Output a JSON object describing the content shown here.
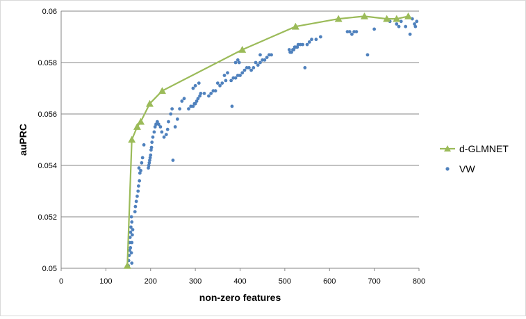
{
  "chart_data": {
    "type": "scatter",
    "title": "",
    "xlabel": "non-zero features",
    "ylabel": "auPRC",
    "xlim": [
      0,
      800
    ],
    "ylim": [
      0.05,
      0.06
    ],
    "x_ticks": [
      "0",
      "100",
      "200",
      "300",
      "400",
      "500",
      "600",
      "700",
      "800"
    ],
    "y_ticks": [
      "0.05",
      "0.052",
      "0.054",
      "0.056",
      "0.058",
      "0.06"
    ],
    "grid": "horizontal",
    "legend_position": "right",
    "series": [
      {
        "name": "d-GLMNET",
        "kind": "line-with-markers",
        "marker": "triangle",
        "color": "#9bbb59",
        "points": [
          [
            148,
            0.0501
          ],
          [
            158,
            0.055
          ],
          [
            170,
            0.0555
          ],
          [
            178,
            0.0557
          ],
          [
            198,
            0.0564
          ],
          [
            226,
            0.0569
          ],
          [
            405,
            0.0585
          ],
          [
            524,
            0.0594
          ],
          [
            620,
            0.0597
          ],
          [
            678,
            0.0598
          ],
          [
            728,
            0.0597
          ],
          [
            750,
            0.0597
          ],
          [
            776,
            0.0598
          ]
        ]
      },
      {
        "name": "VW",
        "kind": "markers",
        "marker": "circle",
        "color": "#4f81bd",
        "points": [
          [
            150,
            0.0501
          ],
          [
            151,
            0.0503
          ],
          [
            152,
            0.0505
          ],
          [
            153,
            0.0507
          ],
          [
            153,
            0.051
          ],
          [
            154,
            0.0512
          ],
          [
            155,
            0.0514
          ],
          [
            155,
            0.0508
          ],
          [
            156,
            0.0516
          ],
          [
            157,
            0.052
          ],
          [
            158,
            0.0518
          ],
          [
            157,
            0.0506
          ],
          [
            158,
            0.051
          ],
          [
            159,
            0.0513
          ],
          [
            160,
            0.0515
          ],
          [
            158,
            0.0502
          ],
          [
            165,
            0.0522
          ],
          [
            166,
            0.0524
          ],
          [
            168,
            0.0526
          ],
          [
            170,
            0.0528
          ],
          [
            172,
            0.053
          ],
          [
            173,
            0.0532
          ],
          [
            175,
            0.0534
          ],
          [
            176,
            0.0537
          ],
          [
            174,
            0.0539
          ],
          [
            178,
            0.0538
          ],
          [
            180,
            0.0541
          ],
          [
            182,
            0.0543
          ],
          [
            185,
            0.0548
          ],
          [
            195,
            0.0539
          ],
          [
            196,
            0.054
          ],
          [
            197,
            0.0541
          ],
          [
            198,
            0.0542
          ],
          [
            199,
            0.0543
          ],
          [
            200,
            0.0544
          ],
          [
            201,
            0.0546
          ],
          [
            202,
            0.0547
          ],
          [
            203,
            0.0549
          ],
          [
            205,
            0.0551
          ],
          [
            208,
            0.0553
          ],
          [
            210,
            0.0555
          ],
          [
            212,
            0.0556
          ],
          [
            215,
            0.0557
          ],
          [
            218,
            0.0556
          ],
          [
            222,
            0.0555
          ],
          [
            225,
            0.0553
          ],
          [
            230,
            0.0551
          ],
          [
            235,
            0.0552
          ],
          [
            238,
            0.0554
          ],
          [
            240,
            0.0557
          ],
          [
            245,
            0.056
          ],
          [
            248,
            0.0562
          ],
          [
            250,
            0.0542
          ],
          [
            255,
            0.0555
          ],
          [
            260,
            0.0558
          ],
          [
            265,
            0.0562
          ],
          [
            270,
            0.0565
          ],
          [
            275,
            0.0566
          ],
          [
            285,
            0.0562
          ],
          [
            290,
            0.0563
          ],
          [
            295,
            0.0563
          ],
          [
            298,
            0.0564
          ],
          [
            300,
            0.0564
          ],
          [
            303,
            0.0565
          ],
          [
            306,
            0.0566
          ],
          [
            310,
            0.0567
          ],
          [
            312,
            0.0568
          ],
          [
            295,
            0.057
          ],
          [
            300,
            0.0571
          ],
          [
            308,
            0.0572
          ],
          [
            320,
            0.0568
          ],
          [
            330,
            0.0567
          ],
          [
            335,
            0.0568
          ],
          [
            340,
            0.0569
          ],
          [
            345,
            0.0569
          ],
          [
            350,
            0.0572
          ],
          [
            355,
            0.0571
          ],
          [
            360,
            0.0572
          ],
          [
            365,
            0.0575
          ],
          [
            368,
            0.0573
          ],
          [
            372,
            0.0576
          ],
          [
            380,
            0.0573
          ],
          [
            382,
            0.0563
          ],
          [
            385,
            0.0574
          ],
          [
            390,
            0.0574
          ],
          [
            395,
            0.0575
          ],
          [
            400,
            0.0575
          ],
          [
            405,
            0.0576
          ],
          [
            410,
            0.0577
          ],
          [
            415,
            0.0578
          ],
          [
            420,
            0.0578
          ],
          [
            425,
            0.0577
          ],
          [
            430,
            0.0578
          ],
          [
            435,
            0.058
          ],
          [
            440,
            0.0579
          ],
          [
            445,
            0.058
          ],
          [
            450,
            0.0581
          ],
          [
            455,
            0.0581
          ],
          [
            460,
            0.0582
          ],
          [
            465,
            0.0583
          ],
          [
            470,
            0.0583
          ],
          [
            390,
            0.058
          ],
          [
            395,
            0.0581
          ],
          [
            398,
            0.058
          ],
          [
            445,
            0.0583
          ],
          [
            510,
            0.0585
          ],
          [
            512,
            0.0584
          ],
          [
            515,
            0.0584
          ],
          [
            518,
            0.0585
          ],
          [
            520,
            0.0585
          ],
          [
            522,
            0.0586
          ],
          [
            525,
            0.0586
          ],
          [
            528,
            0.0586
          ],
          [
            530,
            0.0587
          ],
          [
            535,
            0.0587
          ],
          [
            540,
            0.0587
          ],
          [
            545,
            0.0578
          ],
          [
            550,
            0.0587
          ],
          [
            555,
            0.0588
          ],
          [
            560,
            0.0589
          ],
          [
            570,
            0.0589
          ],
          [
            580,
            0.059
          ],
          [
            640,
            0.0592
          ],
          [
            645,
            0.0592
          ],
          [
            650,
            0.0591
          ],
          [
            655,
            0.0592
          ],
          [
            660,
            0.0592
          ],
          [
            685,
            0.0583
          ],
          [
            700,
            0.0593
          ],
          [
            735,
            0.0596
          ],
          [
            750,
            0.0595
          ],
          [
            755,
            0.0594
          ],
          [
            760,
            0.0596
          ],
          [
            770,
            0.0594
          ],
          [
            780,
            0.0591
          ],
          [
            785,
            0.0597
          ],
          [
            790,
            0.0595
          ],
          [
            792,
            0.0594
          ],
          [
            795,
            0.0596
          ]
        ]
      }
    ]
  }
}
